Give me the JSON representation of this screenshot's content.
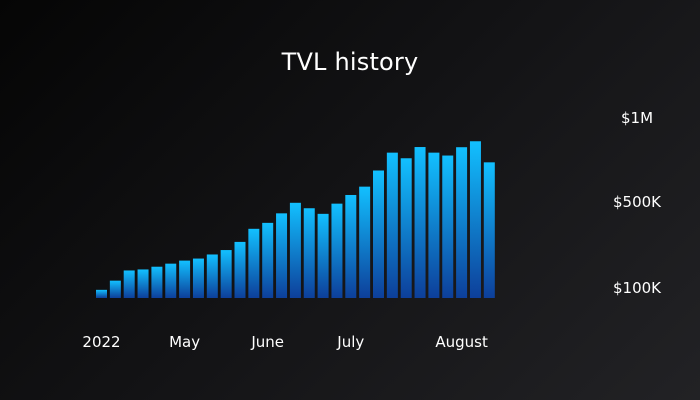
{
  "chart_data": {
    "type": "bar",
    "title": "TVL history",
    "xlabel": "",
    "ylabel": "",
    "values": [
      48000,
      102000,
      162000,
      168000,
      184000,
      202000,
      220000,
      232000,
      256000,
      282000,
      330000,
      407000,
      442000,
      498000,
      560000,
      528000,
      495000,
      555000,
      606000,
      655000,
      750000,
      855000,
      822000,
      888000,
      855000,
      838000,
      887000,
      922000,
      798000
    ],
    "x_tick_labels": [
      "2022",
      "May",
      "June",
      "July",
      "August"
    ],
    "x_tick_bar_index": [
      0,
      6,
      12,
      18,
      26
    ],
    "y_tick_labels": [
      "$1M",
      "$500K",
      "$100K"
    ],
    "y_tick_values": [
      1000000,
      500000,
      100000
    ],
    "ylim": [
      0,
      1000000
    ],
    "grid": false,
    "legend": "none",
    "colors": {
      "bar_top": "#12c0ff",
      "bar_bottom": "#0d3f9a",
      "text": "#ffffff",
      "background": "#111113"
    }
  }
}
